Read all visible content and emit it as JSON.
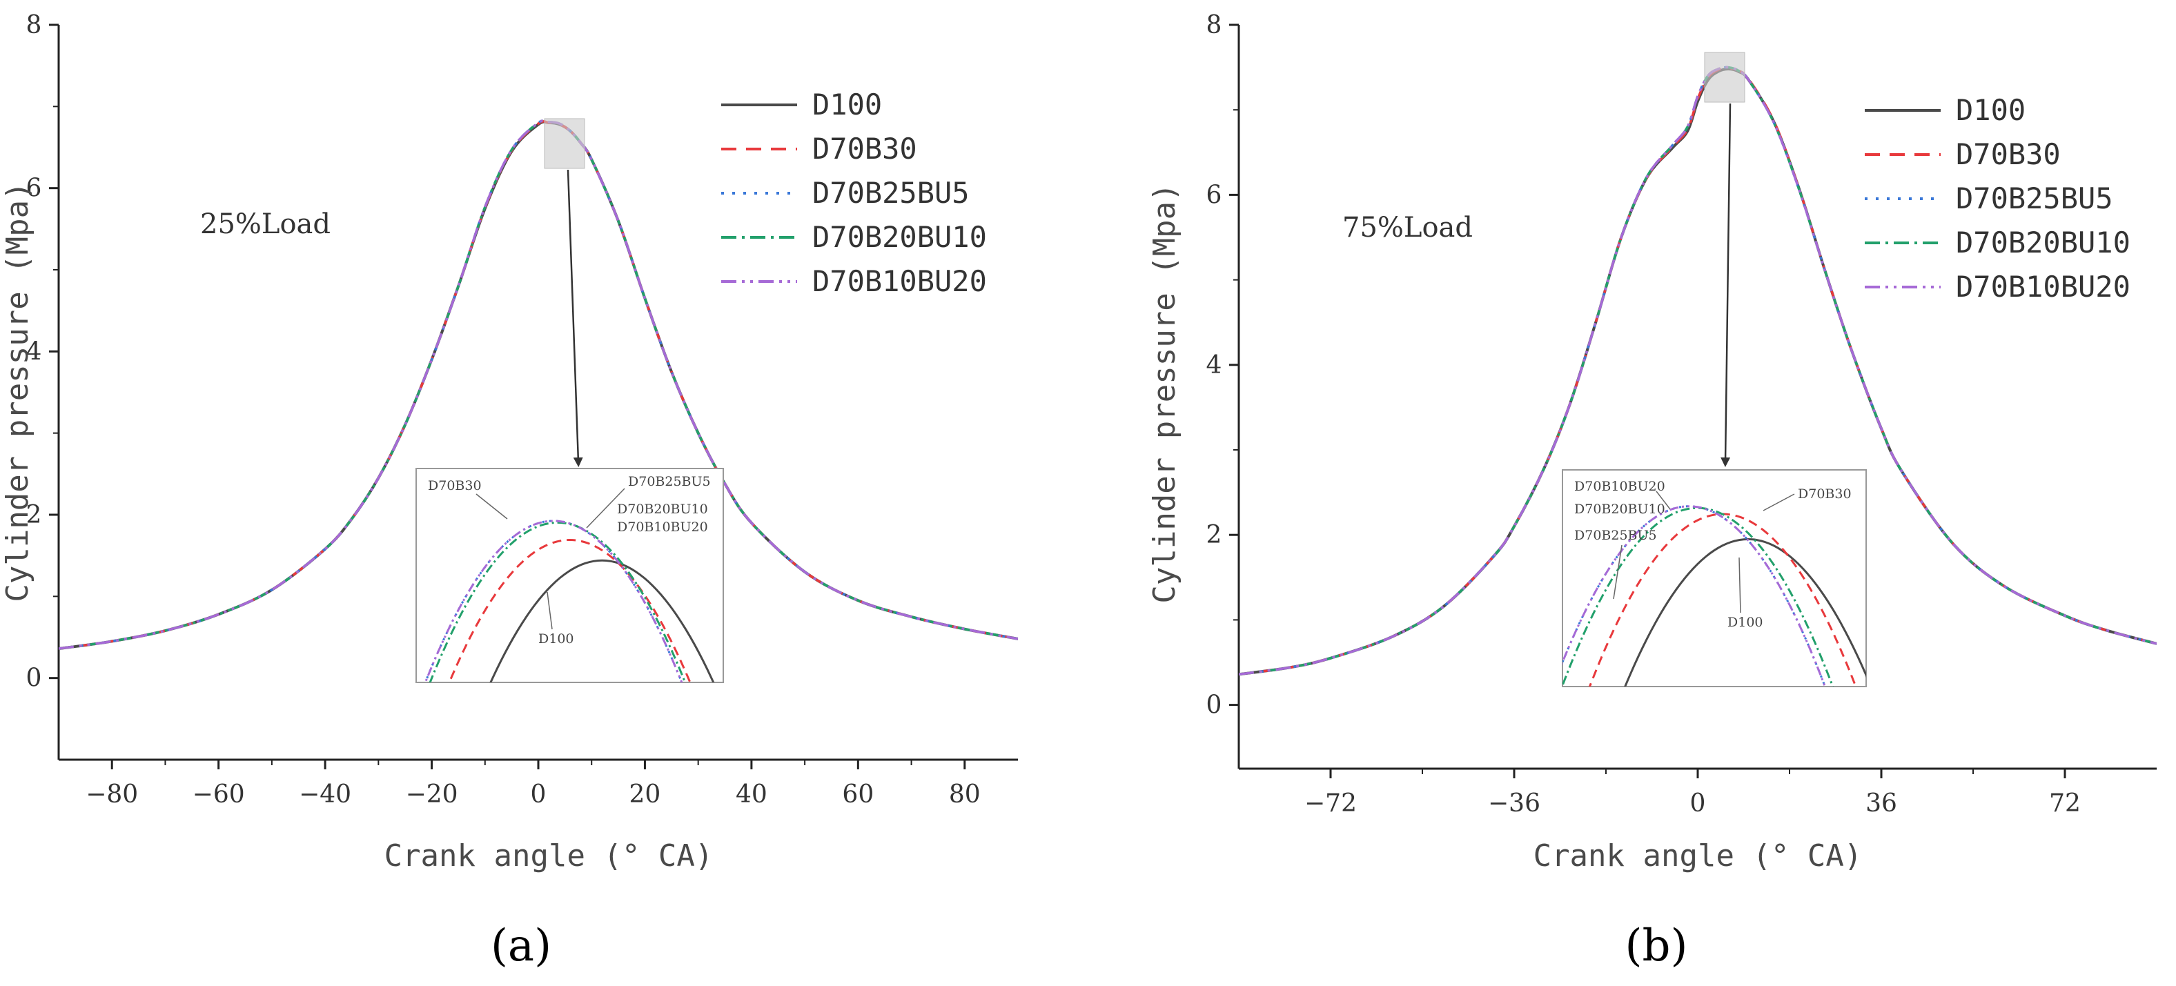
{
  "colors": {
    "D100": "#4a4a4a",
    "D70B30": "#e8393c",
    "D70B25BU5": "#3a78d8",
    "D70B20BU10": "#22a06b",
    "D70B10BU20": "#a66ad6"
  },
  "chart_data": [
    {
      "type": "line",
      "panel_label": "(a)",
      "annotation": "25%Load",
      "xlabel": "Crank angle (° CA)",
      "ylabel": "Cylinder pressure (Mpa)",
      "xlim": [
        -90,
        90
      ],
      "ylim": [
        -1,
        8
      ],
      "xticks": [
        -80,
        -60,
        -40,
        -20,
        0,
        20,
        40,
        60,
        80
      ],
      "yticks": [
        0,
        2,
        4,
        6,
        8
      ],
      "grid": false,
      "legend_position": "top-right",
      "x": [
        -90,
        -80,
        -70,
        -60,
        -50,
        -40,
        -35,
        -30,
        -25,
        -20,
        -15,
        -10,
        -5,
        0,
        2,
        4,
        6,
        8,
        10,
        15,
        20,
        25,
        30,
        35,
        40,
        50,
        60,
        70,
        80,
        90
      ],
      "series": [
        {
          "name": "D100",
          "values": [
            0.36,
            0.45,
            0.58,
            0.78,
            1.08,
            1.58,
            1.95,
            2.45,
            3.1,
            3.9,
            4.8,
            5.75,
            6.45,
            6.78,
            6.8,
            6.78,
            6.7,
            6.55,
            6.35,
            5.6,
            4.65,
            3.75,
            3.0,
            2.38,
            1.9,
            1.3,
            0.95,
            0.75,
            0.6,
            0.48
          ]
        },
        {
          "name": "D70B30",
          "values": [
            0.36,
            0.45,
            0.58,
            0.78,
            1.08,
            1.58,
            1.95,
            2.45,
            3.1,
            3.9,
            4.8,
            5.76,
            6.46,
            6.79,
            6.8,
            6.78,
            6.7,
            6.55,
            6.35,
            5.6,
            4.65,
            3.75,
            3.0,
            2.38,
            1.9,
            1.3,
            0.95,
            0.75,
            0.6,
            0.48
          ]
        },
        {
          "name": "D70B25BU5",
          "values": [
            0.36,
            0.45,
            0.58,
            0.78,
            1.08,
            1.58,
            1.95,
            2.45,
            3.1,
            3.9,
            4.8,
            5.77,
            6.47,
            6.8,
            6.81,
            6.79,
            6.7,
            6.55,
            6.35,
            5.6,
            4.65,
            3.75,
            3.0,
            2.38,
            1.9,
            1.3,
            0.95,
            0.75,
            0.6,
            0.48
          ]
        },
        {
          "name": "D70B20BU10",
          "values": [
            0.36,
            0.45,
            0.58,
            0.78,
            1.08,
            1.58,
            1.95,
            2.45,
            3.1,
            3.9,
            4.8,
            5.77,
            6.47,
            6.8,
            6.81,
            6.79,
            6.7,
            6.55,
            6.35,
            5.6,
            4.65,
            3.75,
            3.0,
            2.38,
            1.9,
            1.3,
            0.95,
            0.75,
            0.6,
            0.48
          ]
        },
        {
          "name": "D70B10BU20",
          "values": [
            0.36,
            0.45,
            0.58,
            0.78,
            1.08,
            1.58,
            1.95,
            2.45,
            3.1,
            3.9,
            4.8,
            5.77,
            6.47,
            6.8,
            6.81,
            6.79,
            6.7,
            6.55,
            6.35,
            5.6,
            4.65,
            3.75,
            3.0,
            2.38,
            1.9,
            1.3,
            0.95,
            0.75,
            0.6,
            0.48
          ]
        }
      ],
      "inset": {
        "labels": [
          "D70B30",
          "D70B25BU5",
          "D70B20BU10",
          "D70B10BU20",
          "D100"
        ]
      }
    },
    {
      "type": "line",
      "panel_label": "(b)",
      "annotation": "75%Load",
      "xlabel": "Crank angle (° CA)",
      "ylabel": "Cylinder pressure (Mpa)",
      "xlim": [
        -90,
        90
      ],
      "ylim": [
        -0.75,
        8
      ],
      "xticks": [
        -72,
        -36,
        0,
        36,
        72
      ],
      "yticks": [
        0,
        2,
        4,
        6,
        8
      ],
      "grid": false,
      "legend_position": "top-right",
      "x": [
        -90,
        -80,
        -72,
        -60,
        -50,
        -40,
        -36,
        -30,
        -25,
        -20,
        -15,
        -10,
        -5,
        -2,
        0,
        2,
        4,
        6,
        8,
        10,
        15,
        20,
        25,
        30,
        36,
        40,
        50,
        60,
        72,
        80,
        90
      ],
      "series": [
        {
          "name": "D100",
          "values": [
            0.36,
            0.44,
            0.55,
            0.8,
            1.15,
            1.75,
            2.1,
            2.8,
            3.55,
            4.5,
            5.5,
            6.2,
            6.55,
            6.75,
            7.1,
            7.35,
            7.45,
            7.48,
            7.45,
            7.35,
            6.85,
            6.05,
            5.1,
            4.2,
            3.25,
            2.75,
            1.9,
            1.4,
            1.05,
            0.88,
            0.72
          ]
        },
        {
          "name": "D70B30",
          "values": [
            0.36,
            0.44,
            0.55,
            0.8,
            1.15,
            1.75,
            2.1,
            2.8,
            3.55,
            4.5,
            5.5,
            6.2,
            6.56,
            6.77,
            7.13,
            7.38,
            7.47,
            7.49,
            7.46,
            7.36,
            6.86,
            6.05,
            5.1,
            4.2,
            3.25,
            2.75,
            1.9,
            1.4,
            1.05,
            0.88,
            0.72
          ]
        },
        {
          "name": "D70B25BU5",
          "values": [
            0.36,
            0.44,
            0.55,
            0.8,
            1.15,
            1.75,
            2.1,
            2.8,
            3.55,
            4.5,
            5.5,
            6.21,
            6.58,
            6.8,
            7.16,
            7.4,
            7.48,
            7.5,
            7.46,
            7.35,
            6.84,
            6.04,
            5.1,
            4.2,
            3.25,
            2.75,
            1.9,
            1.4,
            1.05,
            0.88,
            0.72
          ]
        },
        {
          "name": "D70B20BU10",
          "values": [
            0.36,
            0.44,
            0.55,
            0.8,
            1.15,
            1.75,
            2.1,
            2.8,
            3.55,
            4.5,
            5.5,
            6.21,
            6.58,
            6.8,
            7.16,
            7.4,
            7.48,
            7.5,
            7.46,
            7.35,
            6.84,
            6.04,
            5.1,
            4.2,
            3.25,
            2.75,
            1.9,
            1.4,
            1.05,
            0.88,
            0.72
          ]
        },
        {
          "name": "D70B10BU20",
          "values": [
            0.36,
            0.44,
            0.55,
            0.8,
            1.15,
            1.75,
            2.1,
            2.8,
            3.55,
            4.5,
            5.5,
            6.21,
            6.58,
            6.8,
            7.16,
            7.4,
            7.48,
            7.5,
            7.46,
            7.35,
            6.84,
            6.04,
            5.1,
            4.2,
            3.25,
            2.75,
            1.9,
            1.4,
            1.05,
            0.88,
            0.72
          ]
        }
      ],
      "inset": {
        "labels": [
          "D70B10BU20",
          "D70B20BU10",
          "D70B25BU5",
          "D70B30",
          "D100"
        ]
      }
    }
  ]
}
